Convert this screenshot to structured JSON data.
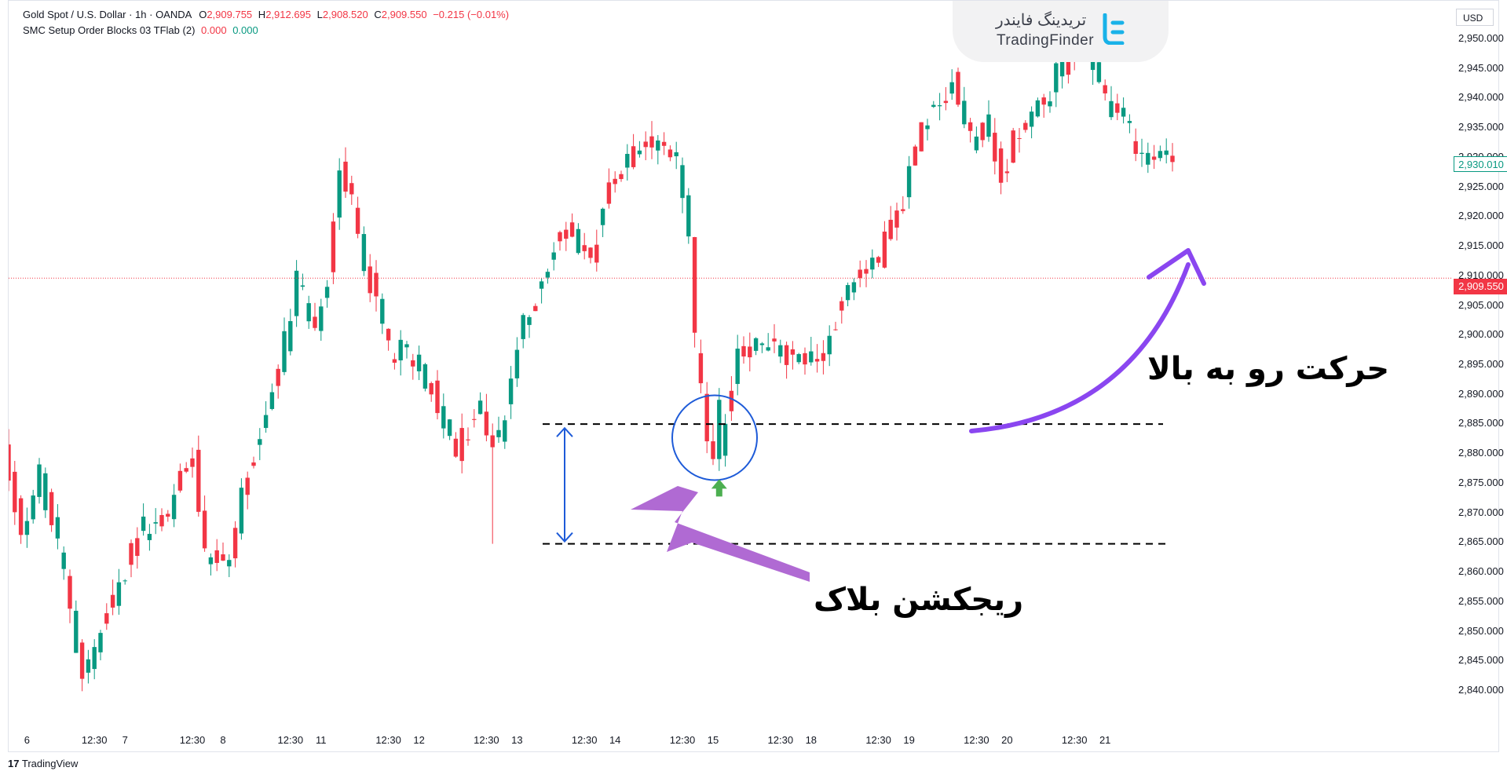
{
  "legend": {
    "symbol": "Gold Spot / U.S. Dollar · 1h · OANDA",
    "o_label": "O",
    "o_value": "2,909.755",
    "h_label": "H",
    "h_value": "2,912.695",
    "l_label": "L",
    "l_value": "2,908.520",
    "c_label": "C",
    "c_value": "2,909.550",
    "change": "−0.215 (−0.01%)",
    "indicator": "SMC Setup Order Blocks 03 TFlab (2)",
    "ind_v1": "0.000",
    "ind_v2": "0.000"
  },
  "watermark": {
    "fa": "تریدینگ فایندر",
    "en": "TradingFinder"
  },
  "currency": "USD",
  "price_tags": {
    "current": "2,909.550",
    "crosshair": "2,930.010"
  },
  "annotations": {
    "move_up": "حرکت رو به بالا",
    "rejection_block": "ریجکشن بلاک"
  },
  "footer": {
    "brand": "TradingView",
    "mark": "17"
  },
  "colors": {
    "up": "#089981",
    "down": "#f23645",
    "arrow_purple": "#b06ad3",
    "arrow_violet": "#8a46f0",
    "bracket_blue": "#1e5bd8",
    "up_marker": "#4caf50"
  },
  "chart_data": {
    "type": "candlestick",
    "title": "Gold Spot / U.S. Dollar · 1h · OANDA",
    "y_axis": {
      "range": [
        2835.5,
        2954.0
      ],
      "ticks": [
        "2,950.000",
        "2,945.000",
        "2,940.000",
        "2,935.000",
        "2,930.000",
        "2,925.000",
        "2,920.000",
        "2,915.000",
        "2,910.000",
        "2,905.000",
        "2,900.000",
        "2,895.000",
        "2,890.000",
        "2,885.000",
        "2,880.000",
        "2,875.000",
        "2,870.000",
        "2,865.000",
        "2,860.000",
        "2,855.000",
        "2,850.000",
        "2,845.000",
        "2,840.000"
      ],
      "tick_values": [
        2950,
        2945,
        2940,
        2935,
        2930,
        2925,
        2920,
        2915,
        2910,
        2905,
        2900,
        2895,
        2890,
        2885,
        2880,
        2875,
        2870,
        2865,
        2860,
        2855,
        2850,
        2845,
        2840
      ]
    },
    "x_axis": {
      "ticks": [
        "6",
        "12:30",
        "7",
        "12:30",
        "8",
        "12:30",
        "11",
        "12:30",
        "12",
        "12:30",
        "13",
        "12:30",
        "14",
        "12:30",
        "15",
        "12:30",
        "18",
        "12:30",
        "19",
        "12:30",
        "20",
        "12:30",
        "21"
      ],
      "tick_bars": [
        3,
        14,
        19,
        30,
        35,
        46,
        51,
        62,
        67,
        78,
        83,
        94,
        99,
        110,
        115,
        126,
        131,
        142,
        147,
        158,
        163,
        174,
        179
      ]
    },
    "last_price": 2909.55,
    "crosshair_price": 2930.01,
    "levels": [
      2884.9,
      2864.7
    ],
    "circle_center_bar": 115,
    "circle_center_price": 2883.0,
    "up_marker_bar": 116,
    "up_marker_price": 2874.0,
    "anchors": [
      {
        "bar": 0,
        "p": 2881
      },
      {
        "bar": 3,
        "p": 2867
      },
      {
        "bar": 6,
        "p": 2876
      },
      {
        "bar": 10,
        "p": 2860
      },
      {
        "bar": 13,
        "p": 2843
      },
      {
        "bar": 15,
        "p": 2847
      },
      {
        "bar": 22,
        "p": 2866
      },
      {
        "bar": 27,
        "p": 2870
      },
      {
        "bar": 31,
        "p": 2881
      },
      {
        "bar": 33,
        "p": 2862
      },
      {
        "bar": 37,
        "p": 2862
      },
      {
        "bar": 40,
        "p": 2877
      },
      {
        "bar": 45,
        "p": 2893
      },
      {
        "bar": 48,
        "p": 2909
      },
      {
        "bar": 51,
        "p": 2902
      },
      {
        "bar": 53,
        "p": 2910
      },
      {
        "bar": 55,
        "p": 2930
      },
      {
        "bar": 58,
        "p": 2917
      },
      {
        "bar": 63,
        "p": 2897
      },
      {
        "bar": 67,
        "p": 2897
      },
      {
        "bar": 71,
        "p": 2889
      },
      {
        "bar": 74,
        "p": 2880
      },
      {
        "bar": 78,
        "p": 2889
      },
      {
        "bar": 79,
        "p": 2883
      },
      {
        "bar": 81,
        "p": 2882
      },
      {
        "bar": 84,
        "p": 2898
      },
      {
        "bar": 88,
        "p": 2910
      },
      {
        "bar": 92,
        "p": 2918
      },
      {
        "bar": 96,
        "p": 2913
      },
      {
        "bar": 99,
        "p": 2926
      },
      {
        "bar": 102,
        "p": 2929
      },
      {
        "bar": 106,
        "p": 2934
      },
      {
        "bar": 110,
        "p": 2929
      },
      {
        "bar": 112,
        "p": 2915
      },
      {
        "bar": 113,
        "p": 2898
      },
      {
        "bar": 115,
        "p": 2884
      },
      {
        "bar": 117,
        "p": 2880
      },
      {
        "bar": 120,
        "p": 2898
      },
      {
        "bar": 125,
        "p": 2898
      },
      {
        "bar": 130,
        "p": 2896
      },
      {
        "bar": 134,
        "p": 2896
      },
      {
        "bar": 137,
        "p": 2907
      },
      {
        "bar": 141,
        "p": 2912
      },
      {
        "bar": 143,
        "p": 2913
      },
      {
        "bar": 147,
        "p": 2923
      },
      {
        "bar": 150,
        "p": 2936
      },
      {
        "bar": 155,
        "p": 2943
      },
      {
        "bar": 158,
        "p": 2932
      },
      {
        "bar": 161,
        "p": 2935
      },
      {
        "bar": 163,
        "p": 2927
      },
      {
        "bar": 166,
        "p": 2935
      },
      {
        "bar": 170,
        "p": 2940
      },
      {
        "bar": 173,
        "p": 2945
      },
      {
        "bar": 176,
        "p": 2951
      },
      {
        "bar": 177,
        "p": 2946
      },
      {
        "bar": 180,
        "p": 2940
      },
      {
        "bar": 183,
        "p": 2936
      },
      {
        "bar": 186,
        "p": 2930
      },
      {
        "bar": 190,
        "p": 2930
      }
    ],
    "special_bars": [
      {
        "bar": 78,
        "o": 2887,
        "h": 2890,
        "l": 2882,
        "c": 2883
      },
      {
        "bar": 79,
        "o": 2883,
        "h": 2885,
        "l": 2864.7,
        "c": 2881
      },
      {
        "bar": 114,
        "o": 2890,
        "h": 2892,
        "l": 2880,
        "c": 2882
      },
      {
        "bar": 115,
        "o": 2882,
        "h": 2885,
        "l": 2878,
        "c": 2879
      },
      {
        "bar": 116,
        "o": 2879,
        "h": 2891,
        "l": 2877,
        "c": 2889
      }
    ]
  }
}
